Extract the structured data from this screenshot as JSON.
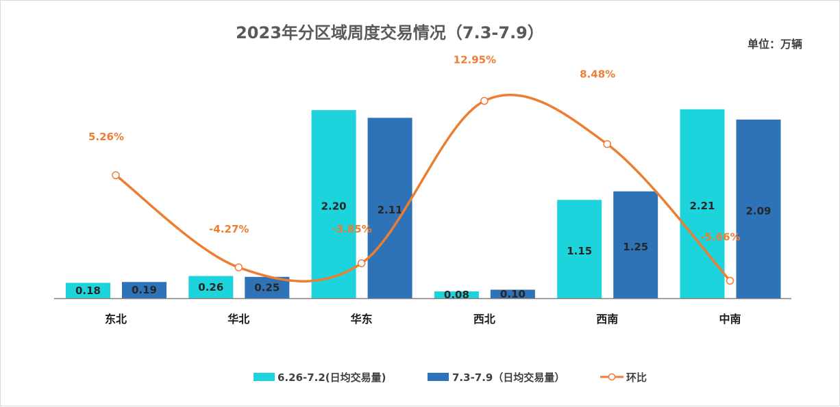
{
  "chart_data": {
    "type": "bar+line",
    "title": "2023年分区域周度交易情况（7.3-7.9）",
    "unit": "单位：万辆",
    "categories": [
      "东北",
      "华北",
      "华东",
      "西北",
      "西南",
      "中南"
    ],
    "series": [
      {
        "name": "6.26-7.2(日均交易量)",
        "type": "bar",
        "values": [
          0.18,
          0.26,
          2.2,
          0.08,
          1.15,
          2.21
        ],
        "labels": [
          "0.18",
          "0.26",
          "2.20",
          "0.08",
          "1.15",
          "2.21"
        ]
      },
      {
        "name": "7.3-7.9（日均交易量）",
        "type": "bar",
        "values": [
          0.19,
          0.25,
          2.11,
          0.1,
          1.25,
          2.09
        ],
        "labels": [
          "0.19",
          "0.25",
          "2.11",
          "0.10",
          "1.25",
          "2.09"
        ]
      },
      {
        "name": "环比",
        "type": "line",
        "values": [
          5.26,
          -4.27,
          -3.85,
          12.95,
          8.48,
          -5.66
        ],
        "labels": [
          "5.26%",
          "-4.27%",
          "-3.85%",
          "12.95%",
          "8.48%",
          "-5.66%"
        ]
      }
    ],
    "grid": false,
    "legend_position": "bottom",
    "colors": {
      "bar1": "#1dd3dc",
      "bar2": "#2e73b7",
      "line": "#ed7d31",
      "marker_fill": "#ffffff",
      "axis": "#7f7f7f"
    }
  }
}
